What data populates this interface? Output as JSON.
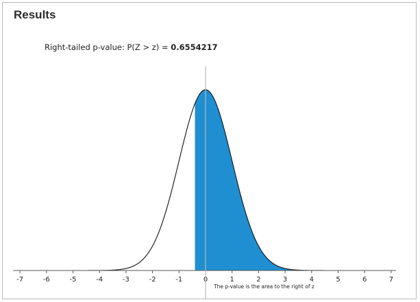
{
  "header": {
    "title": "Results"
  },
  "result": {
    "label": "Right-tailed p-value: P(Z > z) = ",
    "value": "0.6554217"
  },
  "chart_data": {
    "type": "area",
    "distribution": "standard normal",
    "xlim": [
      -7,
      7
    ],
    "x_ticks": [
      -7,
      -6,
      -5,
      -4,
      -3,
      -2,
      -1,
      0,
      1,
      2,
      3,
      4,
      5,
      6,
      7
    ],
    "shaded_from_z": -0.4,
    "shaded_tail": "right",
    "center_line_x": 0,
    "annotation": "The p-value is the area to the right of z",
    "colors": {
      "shade": "#1f8fd1",
      "curve": "#111111",
      "axis": "#555555",
      "center_line": "#b8b8b8"
    }
  }
}
